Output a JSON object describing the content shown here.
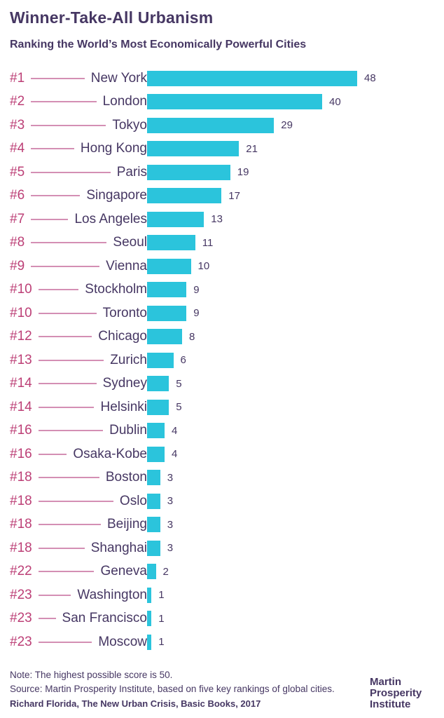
{
  "header": {
    "title": "Winner-Take-All Urbanism",
    "subtitle": "Ranking the World’s Most Economically Powerful Cities"
  },
  "chart_data": {
    "type": "bar",
    "orientation": "horizontal",
    "title": "Winner-Take-All Urbanism",
    "subtitle": "Ranking the World’s Most Economically Powerful Cities",
    "xlim": [
      0,
      50
    ],
    "max_possible_score": 50,
    "grid": false,
    "legend": false,
    "bar_color": "#2BC4DC",
    "rank_color": "#BC3F76",
    "connector_color": "#D48FB4",
    "text_color": "#463763",
    "rows": [
      {
        "rank": "#1",
        "city": "New York",
        "value": 48
      },
      {
        "rank": "#2",
        "city": "London",
        "value": 40
      },
      {
        "rank": "#3",
        "city": "Tokyo",
        "value": 29
      },
      {
        "rank": "#4",
        "city": "Hong Kong",
        "value": 21
      },
      {
        "rank": "#5",
        "city": "Paris",
        "value": 19
      },
      {
        "rank": "#6",
        "city": "Singapore",
        "value": 17
      },
      {
        "rank": "#7",
        "city": "Los Angeles",
        "value": 13
      },
      {
        "rank": "#8",
        "city": "Seoul",
        "value": 11
      },
      {
        "rank": "#9",
        "city": "Vienna",
        "value": 10
      },
      {
        "rank": "#10",
        "city": "Stockholm",
        "value": 9
      },
      {
        "rank": "#10",
        "city": "Toronto",
        "value": 9
      },
      {
        "rank": "#12",
        "city": "Chicago",
        "value": 8
      },
      {
        "rank": "#13",
        "city": "Zurich",
        "value": 6
      },
      {
        "rank": "#14",
        "city": "Sydney",
        "value": 5
      },
      {
        "rank": "#14",
        "city": "Helsinki",
        "value": 5
      },
      {
        "rank": "#16",
        "city": "Dublin",
        "value": 4
      },
      {
        "rank": "#16",
        "city": "Osaka-Kobe",
        "value": 4
      },
      {
        "rank": "#18",
        "city": "Boston",
        "value": 3
      },
      {
        "rank": "#18",
        "city": "Oslo",
        "value": 3
      },
      {
        "rank": "#18",
        "city": "Beijing",
        "value": 3
      },
      {
        "rank": "#18",
        "city": "Shanghai",
        "value": 3
      },
      {
        "rank": "#22",
        "city": "Geneva",
        "value": 2
      },
      {
        "rank": "#23",
        "city": "Washington",
        "value": 1
      },
      {
        "rank": "#23",
        "city": "San Francisco",
        "value": 1
      },
      {
        "rank": "#23",
        "city": "Moscow",
        "value": 1
      }
    ]
  },
  "footer": {
    "note": "Note: The highest possible score is 50.",
    "source": "Source: Martin Prosperity Institute, based on five key rankings of global cities.",
    "citation": "Richard Florida, The New Urban Crisis, Basic Books, 2017",
    "logo_lines": [
      "Martin",
      "Prosperity",
      "Institute"
    ]
  }
}
